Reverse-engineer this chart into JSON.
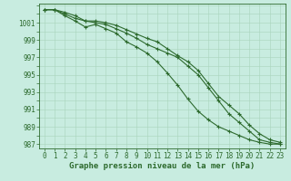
{
  "x": [
    0,
    1,
    2,
    3,
    4,
    5,
    6,
    7,
    8,
    9,
    10,
    11,
    12,
    13,
    14,
    15,
    16,
    17,
    18,
    19,
    20,
    21,
    22,
    23
  ],
  "line1": [
    1002.5,
    1002.5,
    1002.0,
    1001.5,
    1001.2,
    1001.0,
    1000.8,
    1000.3,
    999.8,
    999.2,
    998.5,
    998.0,
    997.5,
    997.0,
    996.0,
    995.0,
    993.5,
    992.0,
    990.5,
    989.5,
    988.5,
    987.5,
    987.2,
    987.0
  ],
  "line2": [
    1002.5,
    1002.5,
    1001.8,
    1001.2,
    1000.5,
    1000.8,
    1000.3,
    999.8,
    998.8,
    998.2,
    997.5,
    996.5,
    995.2,
    993.8,
    992.2,
    990.8,
    989.8,
    989.0,
    988.5,
    988.0,
    987.5,
    987.2,
    987.0,
    987.0
  ],
  "line3": [
    1002.5,
    1002.5,
    1002.2,
    1001.8,
    1001.2,
    1001.2,
    1001.0,
    1000.7,
    1000.2,
    999.7,
    999.2,
    998.8,
    998.0,
    997.2,
    996.5,
    995.5,
    994.0,
    992.5,
    991.5,
    990.5,
    989.2,
    988.2,
    987.5,
    987.2
  ],
  "line_color": "#2d6a2d",
  "bg_color": "#c8ece0",
  "grid_color": "#a8d4bc",
  "xlabel": "Graphe pression niveau de la mer (hPa)",
  "ylim": [
    986.5,
    1003.2
  ],
  "xlim": [
    -0.5,
    23.5
  ],
  "yticks": [
    987,
    989,
    991,
    993,
    995,
    997,
    999,
    1001
  ],
  "xticks": [
    0,
    1,
    2,
    3,
    4,
    5,
    6,
    7,
    8,
    9,
    10,
    11,
    12,
    13,
    14,
    15,
    16,
    17,
    18,
    19,
    20,
    21,
    22,
    23
  ],
  "marker": "+",
  "marker_size": 3.5,
  "linewidth": 0.8,
  "xlabel_fontsize": 6.5,
  "tick_fontsize": 5.5
}
